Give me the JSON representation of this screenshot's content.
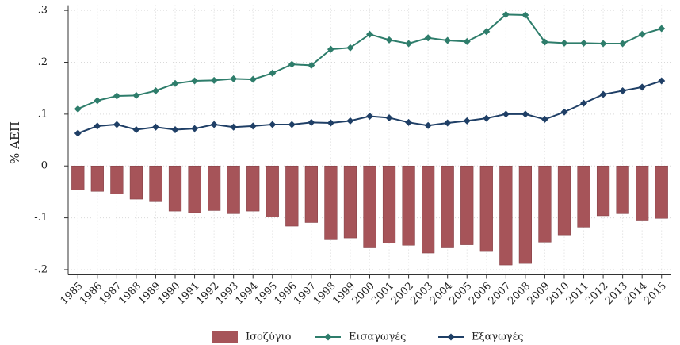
{
  "chart_data": {
    "type": "combo",
    "y_label": "% ΑΕΠ",
    "categories": [
      "1985",
      "1986",
      "1987",
      "1988",
      "1989",
      "1990",
      "1991",
      "1992",
      "1993",
      "1994",
      "1995",
      "1996",
      "1997",
      "1998",
      "1999",
      "2000",
      "2001",
      "2002",
      "2003",
      "2004",
      "2005",
      "2006",
      "2007",
      "2008",
      "2009",
      "2010",
      "2011",
      "2012",
      "2013",
      "2014",
      "2015"
    ],
    "series": [
      {
        "name": "Ισοζύγιο",
        "type": "bar",
        "color": "#a65459",
        "values": [
          -0.046,
          -0.049,
          -0.054,
          -0.064,
          -0.069,
          -0.087,
          -0.09,
          -0.086,
          -0.092,
          -0.087,
          -0.098,
          -0.116,
          -0.109,
          -0.141,
          -0.139,
          -0.158,
          -0.149,
          -0.153,
          -0.168,
          -0.158,
          -0.152,
          -0.165,
          -0.191,
          -0.188,
          -0.147,
          -0.133,
          -0.118,
          -0.096,
          -0.092,
          -0.106,
          -0.101
        ]
      },
      {
        "name": "Εισαγωγές",
        "type": "line",
        "color": "#2e7d6b",
        "values": [
          0.11,
          0.126,
          0.135,
          0.136,
          0.145,
          0.159,
          0.164,
          0.165,
          0.168,
          0.167,
          0.179,
          0.196,
          0.194,
          0.225,
          0.228,
          0.254,
          0.243,
          0.236,
          0.247,
          0.242,
          0.24,
          0.259,
          0.292,
          0.291,
          0.239,
          0.237,
          0.237,
          0.236,
          0.236,
          0.254,
          0.265
        ]
      },
      {
        "name": "Εξαγωγές",
        "type": "line",
        "color": "#1f3f66",
        "values": [
          0.063,
          0.077,
          0.08,
          0.07,
          0.075,
          0.07,
          0.072,
          0.08,
          0.075,
          0.077,
          0.08,
          0.08,
          0.084,
          0.083,
          0.087,
          0.096,
          0.093,
          0.084,
          0.078,
          0.083,
          0.087,
          0.092,
          0.1,
          0.1,
          0.09,
          0.104,
          0.121,
          0.138,
          0.145,
          0.152,
          0.164
        ]
      }
    ],
    "ylim": [
      -0.21,
      0.31
    ],
    "yticks": [
      {
        "value": -0.2,
        "label": "-.2"
      },
      {
        "value": -0.1,
        "label": "-.1"
      },
      0,
      {
        "value": 0.1,
        "label": ".1"
      },
      {
        "value": 0.2,
        "label": ".2"
      },
      {
        "value": 0.3,
        "label": ".3"
      }
    ],
    "grid": true
  }
}
